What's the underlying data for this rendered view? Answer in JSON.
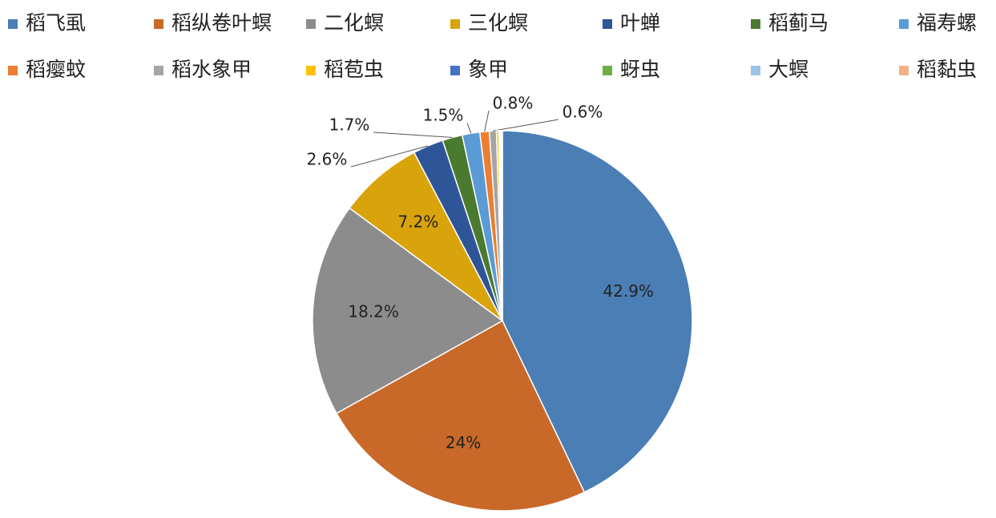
{
  "chart_data": {
    "type": "pie",
    "categories": [
      "稻飞虱",
      "稻纵卷叶螟",
      "二化螟",
      "三化螟",
      "叶蝉",
      "稻蓟马",
      "福寿螺",
      "稻瘿蚊",
      "稻水象甲",
      "稻苞虫",
      "象甲",
      "蚜虫",
      "大螟",
      "稻黏虫"
    ],
    "values": [
      42.9,
      24,
      18.2,
      7.2,
      2.6,
      1.7,
      1.5,
      0.8,
      0.6,
      0.2,
      0.1,
      0.1,
      0.05,
      0.05
    ],
    "value_labels": [
      "42.9%",
      "24%",
      "18.2%",
      "7.2%",
      "2.6%",
      "1.7%",
      "1.5%",
      "0.8%",
      "0.6%",
      null,
      null,
      null,
      null,
      null
    ],
    "colors": [
      "#4a7eb5",
      "#c8692a",
      "#8c8c8c",
      "#d9a40b",
      "#2e5597",
      "#4a7a2e",
      "#5b9bd5",
      "#ed7d31",
      "#a5a5a5",
      "#ffc000",
      "#4472c4",
      "#70ad47",
      "#9dc3e6",
      "#f4b183"
    ],
    "legend": "top"
  }
}
